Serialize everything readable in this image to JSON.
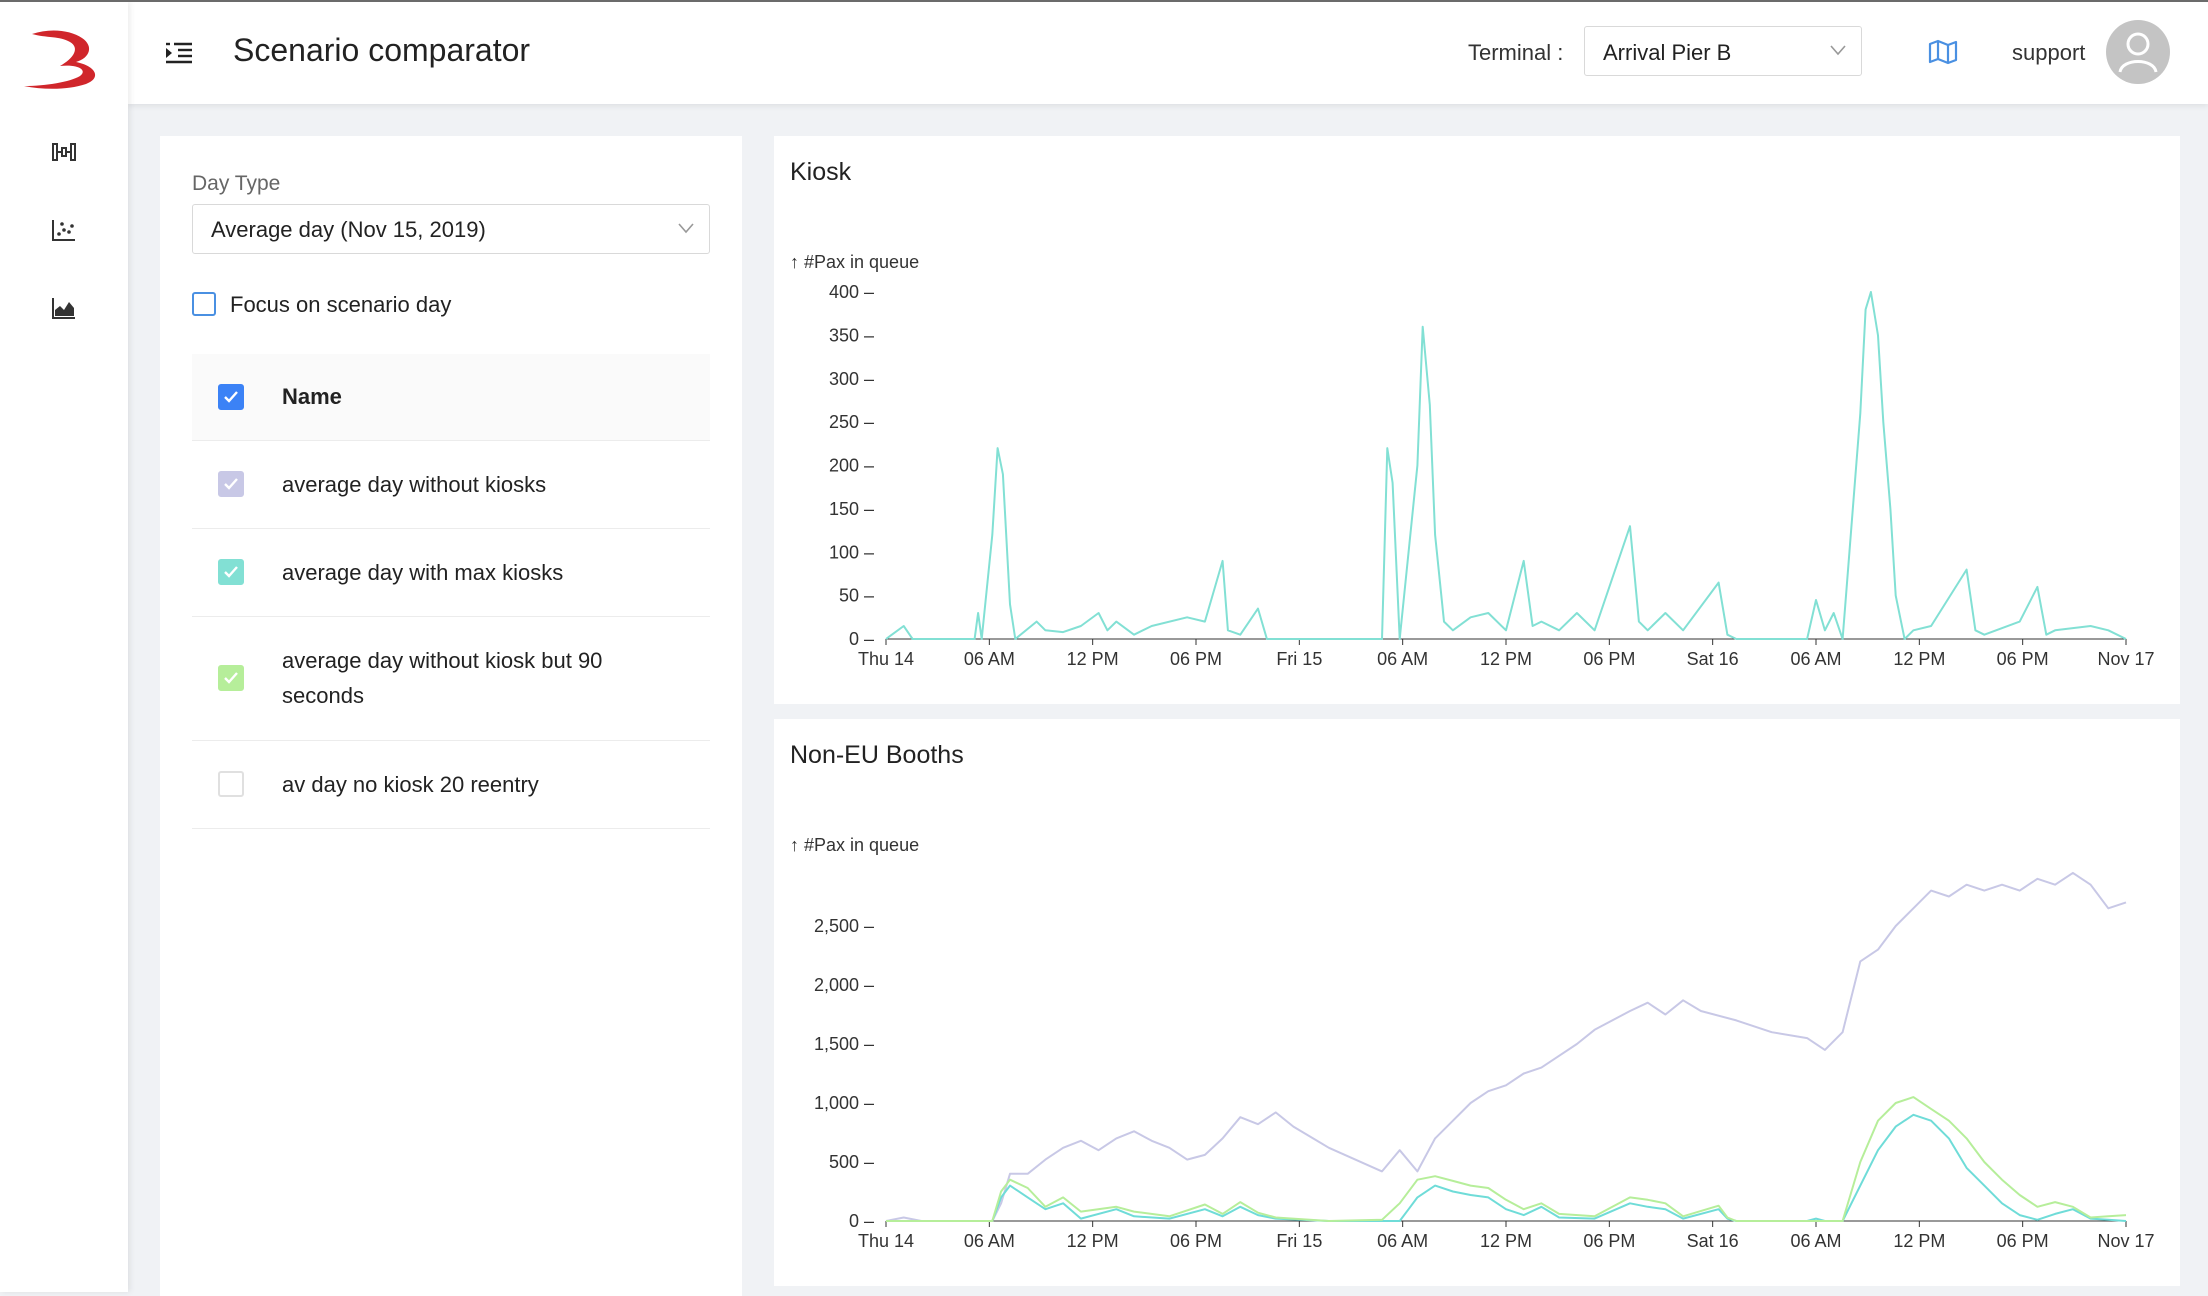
{
  "header": {
    "title": "Scenario comparator",
    "terminal_label": "Terminal :",
    "terminal_value": "Arrival Pier B",
    "user_name": "support"
  },
  "sidebar": {
    "icons": [
      "scenario-sliders-icon",
      "scatter-chart-icon",
      "area-chart-icon"
    ]
  },
  "filters": {
    "day_type_label": "Day Type",
    "day_type_value": "Average day (Nov 15, 2019)",
    "focus_label": "Focus on scenario day",
    "focus_checked": false
  },
  "scenarios": {
    "header": "Name",
    "rows": [
      {
        "name": "average day without kiosks",
        "checked": true,
        "color": "#c8c8e6"
      },
      {
        "name": "average day with max kiosks",
        "checked": true,
        "color": "#82e0d4"
      },
      {
        "name": "average day without kiosk but 90 seconds",
        "checked": true,
        "color": "#b6ee9a"
      },
      {
        "name": "av day no kiosk 20 reentry",
        "checked": false,
        "color": "#ffffff"
      }
    ]
  },
  "colors": {
    "accent": "#4a90e2",
    "kiosk_line": "#82e0d4",
    "series_without_kiosks": "#c8c8e6",
    "series_max_kiosks": "#6fdcd8",
    "series_90s": "#b6ee9a",
    "logo": "#d0262b"
  },
  "chart_data": [
    {
      "type": "line",
      "title": "Kiosk",
      "ylabel": "↑ #Pax in queue",
      "ylim": [
        0,
        400
      ],
      "yticks": [
        "0",
        "50",
        "100",
        "150",
        "200",
        "250",
        "300",
        "350",
        "400"
      ],
      "xticks": [
        "Thu 14",
        "06 AM",
        "12 PM",
        "06 PM",
        "Fri 15",
        "06 AM",
        "12 PM",
        "06 PM",
        "Sat 16",
        "06 AM",
        "12 PM",
        "06 PM",
        "Nov 17"
      ],
      "x_unit": "hours since Thu 14 00:00",
      "series": [
        {
          "name": "average day with max kiosks",
          "color": "#82e0d4",
          "points": [
            [
              0,
              0
            ],
            [
              1,
              15
            ],
            [
              1.5,
              0
            ],
            [
              5,
              0
            ],
            [
              5.2,
              30
            ],
            [
              5.4,
              0
            ],
            [
              6,
              120
            ],
            [
              6.3,
              220
            ],
            [
              6.6,
              190
            ],
            [
              7,
              40
            ],
            [
              7.3,
              0
            ],
            [
              8.5,
              20
            ],
            [
              9,
              10
            ],
            [
              10,
              8
            ],
            [
              11,
              15
            ],
            [
              12,
              30
            ],
            [
              12.5,
              10
            ],
            [
              13,
              20
            ],
            [
              14,
              5
            ],
            [
              15,
              15
            ],
            [
              17,
              25
            ],
            [
              18,
              20
            ],
            [
              19,
              90
            ],
            [
              19.3,
              10
            ],
            [
              20,
              5
            ],
            [
              21,
              35
            ],
            [
              21.5,
              0
            ],
            [
              28,
              0
            ],
            [
              28.3,
              220
            ],
            [
              28.6,
              180
            ],
            [
              29,
              0
            ],
            [
              30,
              200
            ],
            [
              30.3,
              360
            ],
            [
              30.7,
              270
            ],
            [
              31,
              120
            ],
            [
              31.5,
              20
            ],
            [
              32,
              10
            ],
            [
              33,
              25
            ],
            [
              34,
              30
            ],
            [
              35,
              10
            ],
            [
              36,
              90
            ],
            [
              36.5,
              15
            ],
            [
              37,
              20
            ],
            [
              38,
              10
            ],
            [
              39,
              30
            ],
            [
              40,
              10
            ],
            [
              42,
              130
            ],
            [
              42.5,
              20
            ],
            [
              43,
              10
            ],
            [
              44,
              30
            ],
            [
              45,
              10
            ],
            [
              47,
              65
            ],
            [
              47.5,
              5
            ],
            [
              48,
              0
            ],
            [
              49,
              0
            ],
            [
              52,
              0
            ],
            [
              52.5,
              45
            ],
            [
              53,
              10
            ],
            [
              53.5,
              30
            ],
            [
              54,
              0
            ],
            [
              55,
              260
            ],
            [
              55.3,
              380
            ],
            [
              55.6,
              400
            ],
            [
              56,
              350
            ],
            [
              56.3,
              250
            ],
            [
              56.7,
              150
            ],
            [
              57,
              50
            ],
            [
              57.5,
              0
            ],
            [
              58,
              10
            ],
            [
              59,
              15
            ],
            [
              61,
              80
            ],
            [
              61.5,
              10
            ],
            [
              62,
              5
            ],
            [
              64,
              20
            ],
            [
              65,
              60
            ],
            [
              65.5,
              5
            ],
            [
              66,
              10
            ],
            [
              68,
              15
            ],
            [
              69,
              10
            ],
            [
              70,
              0
            ]
          ]
        }
      ],
      "xlim": [
        0,
        70
      ]
    },
    {
      "type": "line",
      "title": "Non-EU Booths",
      "ylabel": "↑ #Pax in queue",
      "ylim": [
        0,
        3000
      ],
      "yticks": [
        "0",
        "500",
        "1,000",
        "1,500",
        "2,000",
        "2,500"
      ],
      "xticks": [
        "Thu 14",
        "06 AM",
        "12 PM",
        "06 PM",
        "Fri 15",
        "06 AM",
        "12 PM",
        "06 PM",
        "Sat 16",
        "06 AM",
        "12 PM",
        "06 PM",
        "Nov 17"
      ],
      "x_unit": "hours since Thu 14 00:00",
      "xlim": [
        0,
        70
      ],
      "series": [
        {
          "name": "average day without kiosks",
          "color": "#c8c8e6",
          "points": [
            [
              0,
              0
            ],
            [
              1,
              30
            ],
            [
              2,
              0
            ],
            [
              6,
              0
            ],
            [
              6.5,
              150
            ],
            [
              7,
              400
            ],
            [
              8,
              400
            ],
            [
              9,
              520
            ],
            [
              10,
              620
            ],
            [
              11,
              680
            ],
            [
              12,
              600
            ],
            [
              13,
              700
            ],
            [
              14,
              760
            ],
            [
              15,
              680
            ],
            [
              16,
              620
            ],
            [
              17,
              520
            ],
            [
              18,
              560
            ],
            [
              19,
              700
            ],
            [
              20,
              880
            ],
            [
              21,
              820
            ],
            [
              22,
              920
            ],
            [
              23,
              800
            ],
            [
              25,
              620
            ],
            [
              28,
              420
            ],
            [
              29,
              600
            ],
            [
              30,
              420
            ],
            [
              31,
              700
            ],
            [
              32,
              850
            ],
            [
              33,
              1000
            ],
            [
              34,
              1100
            ],
            [
              35,
              1150
            ],
            [
              36,
              1250
            ],
            [
              37,
              1300
            ],
            [
              38,
              1400
            ],
            [
              39,
              1500
            ],
            [
              40,
              1620
            ],
            [
              41,
              1700
            ],
            [
              42,
              1780
            ],
            [
              43,
              1850
            ],
            [
              44,
              1750
            ],
            [
              45,
              1870
            ],
            [
              46,
              1780
            ],
            [
              48,
              1700
            ],
            [
              50,
              1600
            ],
            [
              52,
              1550
            ],
            [
              53,
              1450
            ],
            [
              54,
              1600
            ],
            [
              55,
              2200
            ],
            [
              56,
              2300
            ],
            [
              57,
              2500
            ],
            [
              58,
              2650
            ],
            [
              59,
              2800
            ],
            [
              60,
              2750
            ],
            [
              61,
              2850
            ],
            [
              62,
              2800
            ],
            [
              63,
              2850
            ],
            [
              64,
              2800
            ],
            [
              65,
              2900
            ],
            [
              66,
              2850
            ],
            [
              67,
              2950
            ],
            [
              68,
              2850
            ],
            [
              69,
              2650
            ],
            [
              70,
              2700
            ]
          ]
        },
        {
          "name": "average day with max kiosks",
          "color": "#6fdcd8",
          "points": [
            [
              0,
              0
            ],
            [
              6,
              0
            ],
            [
              6.5,
              200
            ],
            [
              7,
              300
            ],
            [
              8,
              200
            ],
            [
              9,
              100
            ],
            [
              10,
              150
            ],
            [
              11,
              20
            ],
            [
              13,
              100
            ],
            [
              14,
              40
            ],
            [
              16,
              20
            ],
            [
              18,
              100
            ],
            [
              19,
              40
            ],
            [
              20,
              120
            ],
            [
              21,
              50
            ],
            [
              22,
              20
            ],
            [
              25,
              0
            ],
            [
              29,
              0
            ],
            [
              29.5,
              100
            ],
            [
              30,
              200
            ],
            [
              31,
              300
            ],
            [
              32,
              250
            ],
            [
              33,
              220
            ],
            [
              34,
              200
            ],
            [
              35,
              100
            ],
            [
              36,
              50
            ],
            [
              37,
              120
            ],
            [
              38,
              30
            ],
            [
              40,
              20
            ],
            [
              42,
              150
            ],
            [
              43,
              120
            ],
            [
              44,
              100
            ],
            [
              45,
              20
            ],
            [
              47,
              100
            ],
            [
              47.5,
              20
            ],
            [
              48,
              0
            ],
            [
              51,
              0
            ],
            [
              52,
              0
            ],
            [
              52.5,
              20
            ],
            [
              53,
              0
            ],
            [
              54,
              0
            ],
            [
              55,
              300
            ],
            [
              56,
              600
            ],
            [
              57,
              800
            ],
            [
              58,
              900
            ],
            [
              59,
              850
            ],
            [
              60,
              700
            ],
            [
              61,
              450
            ],
            [
              62,
              300
            ],
            [
              63,
              150
            ],
            [
              64,
              50
            ],
            [
              65,
              10
            ],
            [
              66,
              60
            ],
            [
              67,
              100
            ],
            [
              68,
              20
            ],
            [
              69,
              10
            ],
            [
              70,
              0
            ]
          ]
        },
        {
          "name": "average day without kiosk but 90 seconds",
          "color": "#b6ee9a",
          "points": [
            [
              0,
              0
            ],
            [
              6,
              0
            ],
            [
              6.5,
              250
            ],
            [
              7,
              350
            ],
            [
              8,
              280
            ],
            [
              9,
              120
            ],
            [
              10,
              200
            ],
            [
              11,
              80
            ],
            [
              13,
              120
            ],
            [
              14,
              80
            ],
            [
              16,
              40
            ],
            [
              18,
              140
            ],
            [
              19,
              60
            ],
            [
              20,
              160
            ],
            [
              21,
              70
            ],
            [
              22,
              30
            ],
            [
              25,
              0
            ],
            [
              28,
              10
            ],
            [
              29,
              150
            ],
            [
              30,
              350
            ],
            [
              31,
              380
            ],
            [
              32,
              340
            ],
            [
              33,
              300
            ],
            [
              34,
              280
            ],
            [
              35,
              180
            ],
            [
              36,
              100
            ],
            [
              37,
              150
            ],
            [
              38,
              60
            ],
            [
              40,
              40
            ],
            [
              42,
              200
            ],
            [
              43,
              180
            ],
            [
              44,
              150
            ],
            [
              45,
              40
            ],
            [
              47,
              130
            ],
            [
              47.5,
              30
            ],
            [
              48,
              0
            ],
            [
              52,
              0
            ],
            [
              53,
              0
            ],
            [
              54,
              0
            ],
            [
              55,
              500
            ],
            [
              56,
              850
            ],
            [
              57,
              1000
            ],
            [
              58,
              1050
            ],
            [
              59,
              950
            ],
            [
              60,
              850
            ],
            [
              61,
              700
            ],
            [
              62,
              500
            ],
            [
              63,
              350
            ],
            [
              64,
              220
            ],
            [
              65,
              120
            ],
            [
              66,
              160
            ],
            [
              67,
              120
            ],
            [
              68,
              30
            ],
            [
              69,
              40
            ],
            [
              70,
              50
            ]
          ]
        }
      ]
    }
  ]
}
